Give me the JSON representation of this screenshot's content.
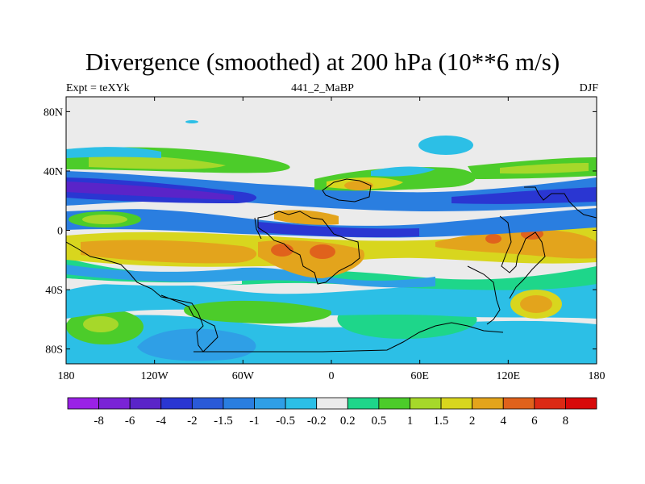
{
  "title": "Divergence (smoothed) at 200 hPa (10**6 m/s)",
  "subtitle_left": "Expt = teXYk",
  "subtitle_center": "441_2_MaBP",
  "subtitle_right": "DJF",
  "map": {
    "type": "filled contour map",
    "projection": "cylindrical equidistant",
    "lon_range": [
      -180,
      180
    ],
    "lat_range": [
      -90,
      90
    ],
    "lat_ticks": [
      "80N",
      "40N",
      "0",
      "40S",
      "80S"
    ],
    "lon_ticks": [
      "180",
      "120W",
      "60W",
      "0",
      "60E",
      "120E",
      "180"
    ],
    "background_fill": "#ebebeb",
    "coastline_color": "#000000"
  },
  "colorbar": {
    "labels": [
      "-8",
      "-6",
      "-4",
      "-2",
      "-1.5",
      "-1",
      "-0.5",
      "-0.2",
      "0.2",
      "0.5",
      "1",
      "1.5",
      "2",
      "4",
      "6",
      "8"
    ],
    "colors": [
      "#9a21e6",
      "#7a23d6",
      "#5a24c8",
      "#2a36d2",
      "#2a5ad8",
      "#2a7ee0",
      "#2f9fe6",
      "#2cbfe6",
      "#ebebeb",
      "#1ed68a",
      "#4ccc2a",
      "#a6d82a",
      "#d8d61e",
      "#e3a41c",
      "#e0621c",
      "#dc2a14",
      "#d80a0a"
    ]
  }
}
